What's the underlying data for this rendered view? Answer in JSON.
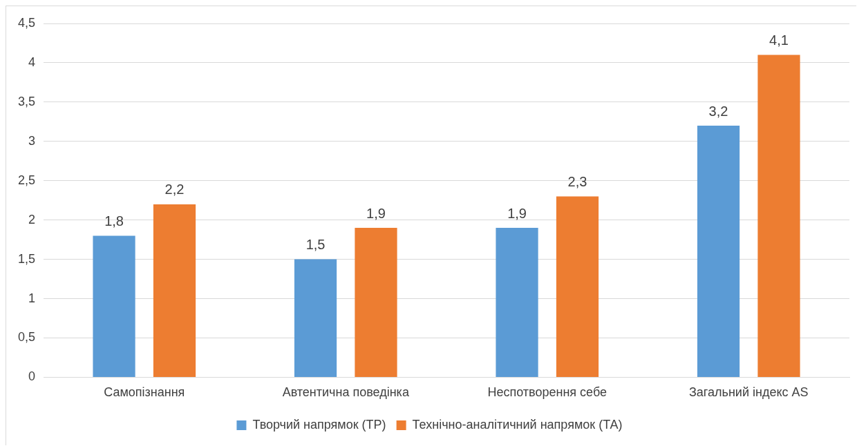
{
  "chart_data": {
    "type": "bar",
    "categories": [
      "Самопізнання",
      "Автентична поведінка",
      "Неспотворення себе",
      "Загальний індекс AS"
    ],
    "series": [
      {
        "name": "Творчий напрямок (ТР)",
        "color": "#5b9bd5",
        "values": [
          1.8,
          1.5,
          1.9,
          3.2
        ],
        "value_labels": [
          "1,8",
          "1,5",
          "1,9",
          "3,2"
        ]
      },
      {
        "name": "Технічно-аналітичний напрямок (ТА)",
        "color": "#ed7d31",
        "values": [
          2.2,
          1.9,
          2.3,
          4.1
        ],
        "value_labels": [
          "2,2",
          "1,9",
          "2,3",
          "4,1"
        ]
      }
    ],
    "ylim": [
      0,
      4.5
    ],
    "yticks": [
      0,
      {
        "value": 0.5,
        "label": "0,5"
      },
      1,
      {
        "value": 1.5,
        "label": "1,5"
      },
      2,
      {
        "value": 2.5,
        "label": "2,5"
      },
      3,
      {
        "value": 3.5,
        "label": "3,5"
      },
      4,
      {
        "value": 4.5,
        "label": "4,5"
      }
    ],
    "grid": "y",
    "legend": "bottom"
  }
}
